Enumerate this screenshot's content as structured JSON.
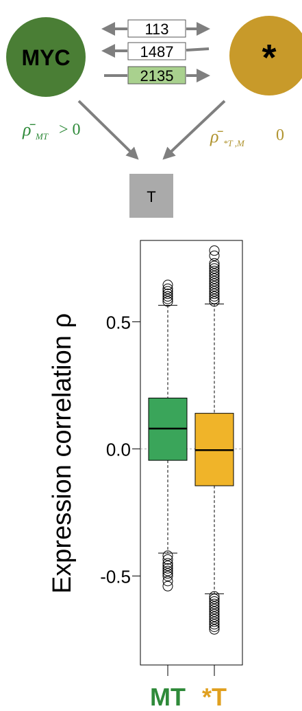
{
  "diagram": {
    "node_myc": {
      "label": "MYC",
      "color": "#4a7e35"
    },
    "node_star": {
      "label": "*",
      "color": "#c89a2a"
    },
    "node_t": {
      "label": "T",
      "color": "#aaaaaa"
    },
    "counts": [
      {
        "value": "113",
        "direction": "both",
        "highlight": false
      },
      {
        "value": "1487",
        "direction": "left",
        "highlight": false
      },
      {
        "value": "2135",
        "direction": "right",
        "highlight": true
      }
    ],
    "formula_left": {
      "symbol": "ρ̄",
      "subscript": "MT",
      "relation": "> 0",
      "color": "#2f8a3a"
    },
    "formula_right": {
      "symbol": "ρ̄",
      "subscript": "*T ,M",
      "relation": "0",
      "color": "#b09430"
    },
    "highlight_color": "#a9d18e"
  },
  "chart_data": {
    "type": "box",
    "ylabel": "Expression correlation  ρ",
    "yticks": [
      "0.5",
      "0.0",
      "-0.5"
    ],
    "categories": [
      "MT",
      "*T"
    ],
    "category_colors": [
      "#3aa55a",
      "#f0b429"
    ],
    "category_label_colors": [
      "#2f8a3a",
      "#e0a020"
    ],
    "ylim": [
      -0.85,
      0.82
    ],
    "series": [
      {
        "q1": -0.045,
        "median": 0.08,
        "q3": 0.2,
        "whisker_low": -0.41,
        "whisker_high": 0.565,
        "outliers": [
          0.58,
          0.59,
          0.6,
          0.61,
          0.62,
          0.63,
          0.645,
          -0.42,
          -0.435,
          -0.45,
          -0.46,
          -0.47,
          -0.48,
          -0.49,
          -0.5,
          -0.52,
          -0.54
        ]
      },
      {
        "q1": -0.145,
        "median": -0.005,
        "q3": 0.14,
        "whisker_low": -0.57,
        "whisker_high": 0.57,
        "outliers": [
          0.58,
          0.59,
          0.6,
          0.61,
          0.62,
          0.63,
          0.64,
          0.65,
          0.66,
          0.67,
          0.68,
          0.69,
          0.7,
          0.71,
          0.72,
          0.73,
          0.76,
          0.78,
          -0.58,
          -0.59,
          -0.6,
          -0.61,
          -0.62,
          -0.63,
          -0.64,
          -0.65,
          -0.66,
          -0.67,
          -0.68,
          -0.69,
          -0.7,
          -0.71
        ]
      }
    ],
    "reference_line": 0,
    "grid": false
  }
}
